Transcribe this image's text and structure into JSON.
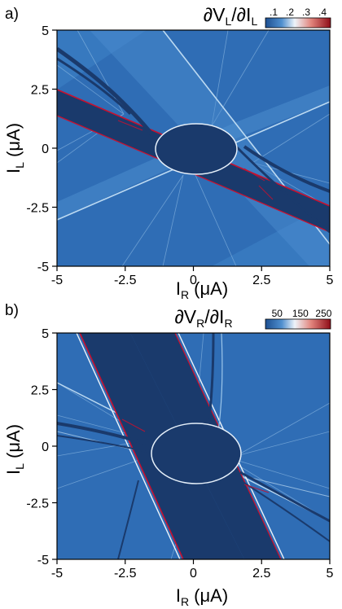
{
  "chart_data": [
    {
      "type": "heatmap",
      "panel": "a)",
      "title_main": "∂V",
      "title_sub1": "L",
      "title_mid": "/∂I",
      "title_sub2": "L",
      "xlabel_main": "I",
      "xlabel_sub": "R",
      "xlabel_unit": " (μA)",
      "ylabel_main": "I",
      "ylabel_sub": "L",
      "ylabel_unit": " (μA)",
      "xlim": [
        -5,
        5
      ],
      "ylim": [
        -5,
        5
      ],
      "xticks": [
        "-5",
        "-2.5",
        "0",
        "2.5",
        "5"
      ],
      "yticks": [
        "-5",
        "-2.5",
        "0",
        "2.5",
        "5"
      ],
      "colorbar": {
        "ticks": [
          ".1",
          ".2",
          ".3",
          ".4"
        ],
        "range": [
          0.05,
          0.45
        ]
      },
      "band_tilt": -0.5,
      "colors": {
        "background": "#2f6db5",
        "band": "#1a3a6c",
        "edge": "#c8102e",
        "light": "#9cc6ea"
      }
    },
    {
      "type": "heatmap",
      "panel": "b)",
      "title_main": "∂V",
      "title_sub1": "R",
      "title_mid": "/∂I",
      "title_sub2": "R",
      "xlabel_main": "I",
      "xlabel_sub": "R",
      "xlabel_unit": " (μA)",
      "ylabel_main": "I",
      "ylabel_sub": "L",
      "ylabel_unit": " (μA)",
      "xlim": [
        -5,
        5
      ],
      "ylim": [
        -5,
        5
      ],
      "xticks": [
        "-5",
        "-2.5",
        "0",
        "2.5",
        "5"
      ],
      "yticks": [
        "-5",
        "-2.5",
        "0",
        "2.5",
        "5"
      ],
      "colorbar": {
        "ticks": [
          "50",
          "150",
          "250"
        ],
        "range": [
          0,
          280
        ]
      },
      "band_tilt": -2,
      "colors": {
        "background": "#2f6db5",
        "band": "#1a3a6c",
        "edge": "#c8102e",
        "light": "#9cc6ea"
      }
    }
  ]
}
